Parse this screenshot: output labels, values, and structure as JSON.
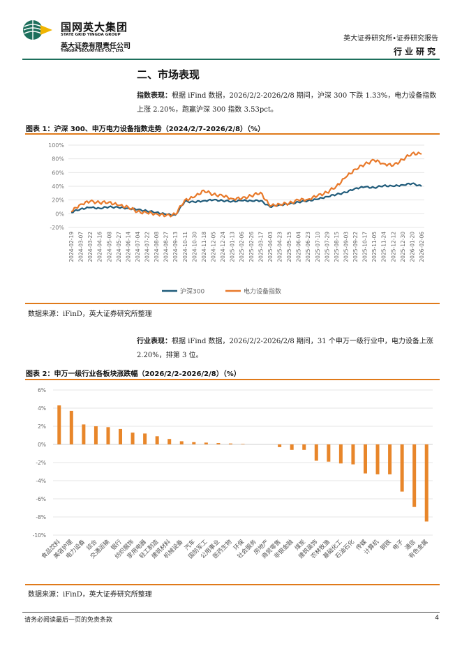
{
  "header": {
    "logo_cn": "国网英大集团",
    "logo_en": "STATE GRID YINGDA GROUP",
    "company_cn": "英大证券有限责任公司",
    "company_en": "YINGDA SECURITIES CO., LTD.",
    "report_type": "英大证券研究所•证券研究报告",
    "section": "行业研究"
  },
  "section_title": "二、市场表现",
  "paragraph1": {
    "label": "指数表现：",
    "text": "根据 iFind 数据，2026/2/2-2026/2/8 期间，沪深 300 下跌 1.33%，电力设备指数上涨 2.20%，跑赢沪深 300 指数 3.53pct。"
  },
  "figure1": {
    "title": "图表 1：沪深 300、申万电力设备指数走势（2024/2/7-2026/2/8）（%）",
    "source": "数据来源：iFinD，英大证券研究所整理"
  },
  "paragraph2": {
    "label": "行业表现：",
    "text": "根据 iFind 数据，2026/2/2-2026/2/8 期间，31 个申万一级行业中，电力设备上涨 2.20%，排第 3 位。"
  },
  "figure2": {
    "title": "图表 2：申万一级行业各板块涨跌幅（2026/2/2-2026/2/8）（%）",
    "source": "数据来源：iFinD，英大证券研究所整理"
  },
  "footer": {
    "disclaimer": "请务必阅读最后一页的免责条款",
    "page": "4"
  },
  "colors": {
    "brand_green": "#1d6f5c",
    "accent_orange": "#e07a1a",
    "series_hs300": "#1f5b7a",
    "series_power": "#e8792a"
  },
  "chart_data": [
    {
      "type": "line",
      "title": "",
      "xlabel": "",
      "ylabel": "",
      "ylim": [
        -20,
        100
      ],
      "yticks": [
        "-20%",
        "0%",
        "20%",
        "40%",
        "60%",
        "80%",
        "100%"
      ],
      "x": [
        "2024-02-19",
        "2024-03-07",
        "2024-03-22",
        "2024-04-16",
        "2024-05-08",
        "2024-05-27",
        "2024-06-14",
        "2024-07-04",
        "2024-07-22",
        "2024-08-08",
        "2024-08-27",
        "2024-09-13",
        "2024-10-11",
        "2024-10-30",
        "2024-11-18",
        "2024-12-05",
        "2024-12-24",
        "2025-01-13",
        "2025-02-06",
        "2025-02-26",
        "2025-03-17",
        "2025-04-03",
        "2025-04-23",
        "2025-05-15",
        "2025-06-04",
        "2025-06-23",
        "2025-07-10",
        "2025-07-29",
        "2025-08-15",
        "2025-09-03",
        "2025-09-22",
        "2025-10-17",
        "2025-11-05",
        "2025-11-24",
        "2025-12-12",
        "2025-12-30",
        "2026-01-20",
        "2026-02-06"
      ],
      "legend_position": "bottom",
      "grid": true,
      "series": [
        {
          "name": "沪深300",
          "color": "#1f5b7a",
          "values": [
            2,
            7,
            9,
            8,
            10,
            9,
            8,
            6,
            4,
            2,
            -1,
            -2,
            18,
            17,
            19,
            20,
            19,
            18,
            19,
            19,
            19,
            10,
            13,
            14,
            17,
            19,
            21,
            25,
            28,
            31,
            37,
            39,
            38,
            41,
            40,
            42,
            44,
            40
          ]
        },
        {
          "name": "电力设备指数",
          "color": "#e8792a",
          "values": [
            3,
            14,
            18,
            16,
            17,
            12,
            10,
            3,
            1,
            0,
            -3,
            -1,
            20,
            24,
            34,
            28,
            26,
            22,
            22,
            26,
            31,
            11,
            14,
            15,
            20,
            21,
            26,
            31,
            40,
            53,
            65,
            72,
            78,
            73,
            70,
            79,
            88,
            87
          ]
        }
      ]
    },
    {
      "type": "bar",
      "title": "",
      "ylim": [
        -10,
        6
      ],
      "yticks": [
        "6%",
        "4%",
        "2%",
        "0%",
        "-2%",
        "-4%",
        "-6%",
        "-8%",
        "-10%"
      ],
      "categories": [
        "食品饮料",
        "美容护理",
        "电力设备",
        "综合",
        "交通运输",
        "银行",
        "纺织服饰",
        "家用电器",
        "轻工制造",
        "建筑材料",
        "机械设备",
        "汽车",
        "国防军工",
        "公用事业",
        "医药生物",
        "环保",
        "社会服务",
        "房地产",
        "商贸零售",
        "非银金融",
        "煤炭",
        "建筑装饰",
        "农林牧渔",
        "基础化工",
        "石油石化",
        "传媒",
        "计算机",
        "钢铁",
        "电子",
        "通信",
        "有色金属"
      ],
      "values": [
        4.3,
        3.7,
        2.2,
        2.0,
        1.9,
        1.7,
        1.3,
        1.2,
        0.9,
        0.6,
        0.35,
        0.25,
        0.2,
        0.15,
        0.1,
        0.05,
        0.0,
        0.0,
        -0.3,
        -0.6,
        -0.6,
        -1.8,
        -1.9,
        -2.1,
        -2.2,
        -3.2,
        -3.3,
        -3.3,
        -5.2,
        -6.9,
        -8.5
      ],
      "color": "#e8862a",
      "grid": true
    }
  ]
}
